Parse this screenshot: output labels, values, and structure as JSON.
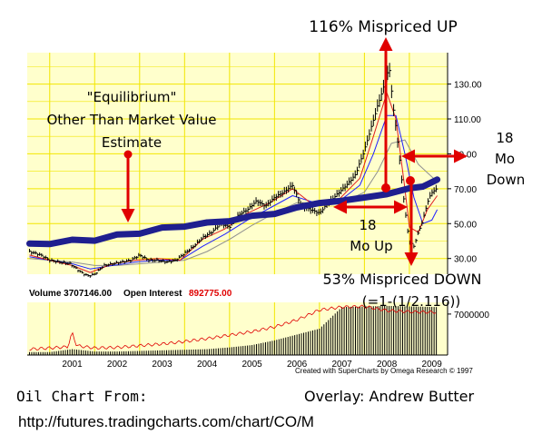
{
  "chart_data": {
    "type": "line",
    "title": "",
    "xlabel": "",
    "ylabel": "",
    "x_tick_labels": [
      "2001",
      "2002",
      "2003",
      "2004",
      "2005",
      "2006",
      "2007",
      "2008",
      "2009"
    ],
    "y_tick_labels": [
      "130.00",
      "110.00",
      "90.00",
      "70.00",
      "50.00",
      "30.00"
    ],
    "ylim": [
      21,
      148
    ],
    "volume_tick_label": "7000000",
    "grid": true,
    "series": [
      {
        "name": "",
        "role": "price",
        "color": "#000000",
        "x": [
          2000.55,
          2000.8,
          2001.0,
          2001.2,
          2001.45,
          2001.7,
          2001.85,
          2002.0,
          2002.2,
          2002.4,
          2002.6,
          2002.8,
          2003.0,
          2003.2,
          2003.4,
          2003.6,
          2003.8,
          2004.0,
          2004.2,
          2004.4,
          2004.6,
          2004.8,
          2005.0,
          2005.2,
          2005.4,
          2005.6,
          2005.8,
          2006.0,
          2006.2,
          2006.4,
          2006.6,
          2006.8,
          2007.0,
          2007.2,
          2007.4,
          2007.6,
          2007.8,
          2008.0,
          2008.15,
          2008.3,
          2008.45,
          2008.55,
          2008.65,
          2008.75,
          2008.85,
          2008.95,
          2009.0,
          2009.1,
          2009.2,
          2009.3,
          2009.4,
          2009.5,
          2009.62
        ],
        "values": [
          34,
          32,
          29,
          28,
          27,
          22,
          20,
          21,
          26,
          27,
          28,
          29,
          32,
          29,
          29,
          28,
          29,
          33,
          37,
          42,
          45,
          50,
          48,
          55,
          58,
          63,
          60,
          65,
          68,
          72,
          60,
          58,
          56,
          62,
          67,
          72,
          78,
          92,
          105,
          118,
          130,
          140,
          115,
          95,
          70,
          48,
          40,
          37,
          45,
          52,
          62,
          68,
          70
        ]
      },
      {
        "name": "",
        "role": "moving-average-red",
        "color": "#e02020",
        "x": [
          2000.55,
          2001.0,
          2001.5,
          2001.9,
          2002.4,
          2002.9,
          2003.4,
          2003.9,
          2004.4,
          2004.9,
          2005.4,
          2005.9,
          2006.4,
          2006.9,
          2007.4,
          2007.9,
          2008.2,
          2008.5,
          2008.7,
          2008.9,
          2009.0,
          2009.2,
          2009.4,
          2009.62
        ],
        "values": [
          32,
          29,
          26,
          22,
          27,
          29,
          30,
          29,
          41,
          47,
          56,
          62,
          70,
          60,
          63,
          76,
          100,
          125,
          110,
          70,
          48,
          45,
          58,
          66
        ]
      },
      {
        "name": "",
        "role": "moving-average-blue",
        "color": "#2020ff",
        "x": [
          2000.55,
          2001.0,
          2001.5,
          2001.9,
          2002.4,
          2002.9,
          2003.4,
          2003.9,
          2004.4,
          2004.9,
          2005.4,
          2005.9,
          2006.4,
          2006.9,
          2007.4,
          2007.9,
          2008.2,
          2008.5,
          2008.7,
          2008.9,
          2009.1,
          2009.3,
          2009.5,
          2009.62
        ],
        "values": [
          31,
          29,
          27,
          24,
          26,
          28,
          29,
          29,
          37,
          44,
          52,
          59,
          66,
          62,
          62,
          72,
          90,
          112,
          112,
          90,
          65,
          50,
          52,
          58
        ]
      },
      {
        "name": "",
        "role": "moving-average-gray",
        "color": "#909090",
        "x": [
          2000.55,
          2001.0,
          2001.5,
          2002.0,
          2002.5,
          2003.0,
          2003.5,
          2004.0,
          2004.5,
          2005.0,
          2005.5,
          2006.0,
          2006.5,
          2007.0,
          2007.5,
          2008.0,
          2008.3,
          2008.6,
          2008.9,
          2009.2,
          2009.62
        ],
        "values": [
          30,
          29,
          28,
          26,
          26,
          27,
          28,
          29,
          34,
          41,
          49,
          56,
          62,
          62,
          62,
          68,
          80,
          96,
          98,
          84,
          74
        ]
      },
      {
        "name": "",
        "role": "equilibrium-overlay",
        "color": "#1f1f8f",
        "x": [
          2000.55,
          2001.0,
          2001.5,
          2002.0,
          2002.5,
          2003.0,
          2003.5,
          2004.0,
          2004.5,
          2005.0,
          2005.5,
          2006.0,
          2006.5,
          2007.0,
          2007.5,
          2008.0,
          2008.5,
          2009.0,
          2009.3,
          2009.62
        ],
        "values": [
          38,
          39,
          40,
          41,
          43,
          45,
          47,
          49,
          50,
          52,
          54,
          56,
          59,
          62,
          63,
          65,
          67,
          70,
          72,
          75
        ]
      }
    ],
    "volume": {
      "name": "",
      "color": "#000000",
      "x": [
        2000.55,
        2001.0,
        2001.5,
        2002.0,
        2002.5,
        2003.0,
        2003.5,
        2004.0,
        2004.5,
        2005.0,
        2005.5,
        2006.0,
        2006.5,
        2007.0,
        2007.5,
        2008.0,
        2008.5,
        2009.0,
        2009.62
      ],
      "values": [
        0.5,
        0.5,
        1.0,
        0.6,
        0.6,
        0.7,
        0.8,
        0.9,
        1.0,
        1.3,
        1.7,
        2.5,
        3.5,
        4.5,
        8.2,
        8.3,
        8.4,
        8.3,
        8.2
      ]
    },
    "open_interest": {
      "name": "",
      "color": "#e00000",
      "x": [
        2000.55,
        2001.0,
        2001.4,
        2001.5,
        2001.6,
        2002.0,
        2002.5,
        2003.0,
        2003.5,
        2004.0,
        2004.5,
        2005.0,
        2005.5,
        2006.0,
        2006.5,
        2007.0,
        2007.5,
        2008.0,
        2008.5,
        2009.0,
        2009.62
      ],
      "values": [
        1.0,
        1.2,
        1.4,
        3.8,
        1.6,
        1.2,
        1.3,
        1.6,
        1.9,
        2.3,
        2.8,
        3.4,
        4.0,
        4.8,
        6.0,
        7.7,
        8.2,
        8.3,
        7.6,
        7.4,
        7.3
      ]
    }
  },
  "annotations": {
    "equilibrium_line1": "\"Equilibrium\"",
    "equilibrium_line2": "Other Than Market Value",
    "equilibrium_line3": "Estimate",
    "mispriced_up": "116% Mispriced UP",
    "mo_down_line1": "18",
    "mo_down_line2": "Mo",
    "mo_down_line3": "Down",
    "mo_up_line1": "18",
    "mo_up_line2": "Mo Up",
    "mispriced_down_line1": "53% Mispriced DOWN",
    "mispriced_down_line2": "(=1-(1/2.116))"
  },
  "volume_panel": {
    "volume_label": "Volume",
    "volume_value": "3707146.00",
    "oi_label": "Open Interest",
    "oi_value": "892775.00"
  },
  "credit": "Created with SuperCharts by Omega Research © 1997",
  "footer": {
    "source_label": "Oil Chart From:",
    "overlay_label": "Overlay: Andrew Butter",
    "source_url": "http://futures.tradingcharts.com/chart/CO/M"
  },
  "colors": {
    "plot_background": "#ffffcc",
    "grid": "#f2e600",
    "arrow": "#e00000"
  }
}
